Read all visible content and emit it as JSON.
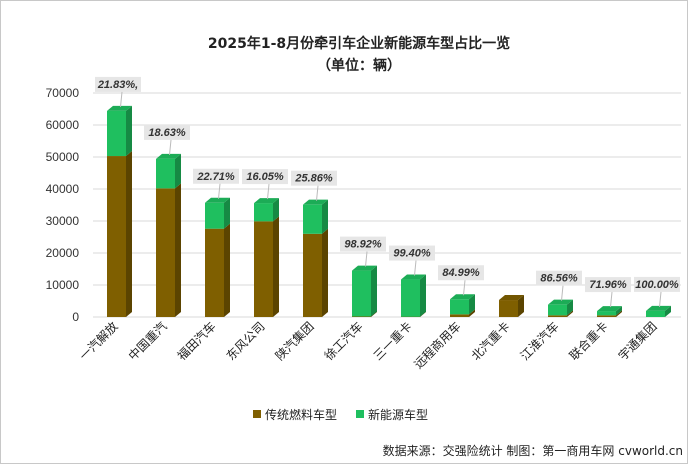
{
  "chart_data": {
    "type": "bar",
    "stacked": true,
    "title": "2025年1-8月份牵引车企业新能源车型占比一览",
    "subtitle": "（单位：辆）",
    "xlabel": "",
    "ylabel": "",
    "ylim": [
      0,
      70000
    ],
    "yticks": [
      "0",
      "10000",
      "20000",
      "30000",
      "40000",
      "50000",
      "60000",
      "70000"
    ],
    "grid": true,
    "legend_position": "bottom",
    "categories": [
      "一汽解放",
      "中国重汽",
      "福田汽车",
      "东风公司",
      "陕汽集团",
      "徐工汽车",
      "三一重卡",
      "远程商用车",
      "北汽重卡",
      "江淮汽车",
      "联合重卡",
      "宇通集团"
    ],
    "series": [
      {
        "name": "传统燃料车型",
        "color": "#7f5f00",
        "values": [
          50300,
          40200,
          27600,
          29900,
          26000,
          160,
          70,
          830,
          5300,
          520,
          520,
          0
        ]
      },
      {
        "name": "新能源车型",
        "color": "#1fbf5f",
        "values": [
          14100,
          9200,
          8100,
          5700,
          9100,
          14340,
          11630,
          4720,
          0,
          3330,
          1330,
          1900
        ]
      }
    ],
    "annotations": [
      "21.83%,",
      "18.63%",
      "22.71%",
      "16.05%",
      "25.86%",
      "98.92%",
      "99.40%",
      "84.99%",
      "",
      "86.56%",
      "71.96%",
      "100.00%"
    ],
    "source": "数据来源：交强险统计   制图：第一商用车网 cvworld.cn"
  }
}
